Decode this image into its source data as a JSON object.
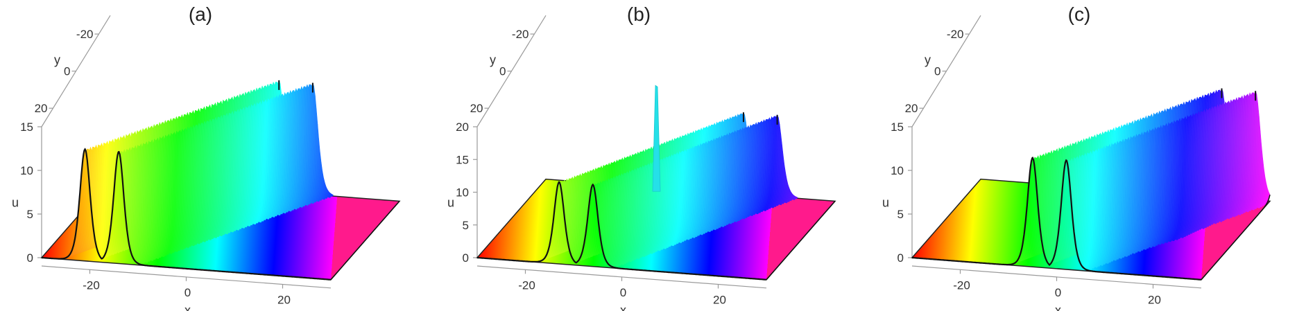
{
  "chart_data": [
    {
      "type": "surface",
      "title": "(a)",
      "xlabel": "x",
      "ylabel": "y",
      "zlabel": "u",
      "x_ticks": [
        "-20",
        "0",
        "20"
      ],
      "y_ticks": [
        "-20",
        "0",
        "20"
      ],
      "z_ticks": [
        "0",
        "5",
        "10",
        "15"
      ],
      "xlim": [
        -30,
        30
      ],
      "ylim": [
        -30,
        30
      ],
      "zlim": [
        0,
        15
      ],
      "colormap": "hue along x",
      "peaks": [
        {
          "x": -21,
          "y": 30,
          "height": 12.8
        },
        {
          "x": -14,
          "y": 30,
          "height": 12.8
        }
      ],
      "peaks_at_far_edge": [
        {
          "x": 5,
          "y": -30,
          "height": 12.8
        },
        {
          "x": 12,
          "y": -30,
          "height": 12.8
        }
      ],
      "interaction": {
        "type": "none"
      }
    },
    {
      "type": "surface",
      "title": "(b)",
      "xlabel": "x",
      "ylabel": "y",
      "zlabel": "u",
      "x_ticks": [
        "-20",
        "0",
        "20"
      ],
      "y_ticks": [
        "-20",
        "0",
        "20"
      ],
      "z_ticks": [
        "0",
        "5",
        "10",
        "15",
        "20"
      ],
      "xlim": [
        -30,
        30
      ],
      "ylim": [
        -30,
        30
      ],
      "zlim": [
        0,
        20
      ],
      "colormap": "hue along x",
      "peaks": [
        {
          "x": -13,
          "y": 30,
          "height": 12.5
        },
        {
          "x": -6,
          "y": 30,
          "height": 12.5
        }
      ],
      "peaks_at_far_edge": [
        {
          "x": 11,
          "y": -30,
          "height": 12.5
        },
        {
          "x": 18,
          "y": -30,
          "height": 12.5
        }
      ],
      "interaction": {
        "type": "spike",
        "x": 0,
        "y": 0,
        "height": 22
      }
    },
    {
      "type": "surface",
      "title": "(c)",
      "xlabel": "x",
      "ylabel": "y",
      "zlabel": "u",
      "x_ticks": [
        "-20",
        "0",
        "20"
      ],
      "y_ticks": [
        "-20",
        "0",
        "20"
      ],
      "z_ticks": [
        "0",
        "5",
        "10",
        "15"
      ],
      "xlim": [
        -30,
        30
      ],
      "ylim": [
        -30,
        30
      ],
      "zlim": [
        0,
        15
      ],
      "colormap": "hue along x",
      "peaks": [
        {
          "x": -5,
          "y": 30,
          "height": 12.5
        },
        {
          "x": 2,
          "y": 30,
          "height": 12.5
        }
      ],
      "peaks_at_far_edge": [
        {
          "x": 20,
          "y": -30,
          "height": 12.5
        },
        {
          "x": 27,
          "y": -30,
          "height": 12.5
        }
      ],
      "interaction": {
        "type": "bump",
        "x": 12,
        "y": -5,
        "height": 10.5
      }
    }
  ]
}
